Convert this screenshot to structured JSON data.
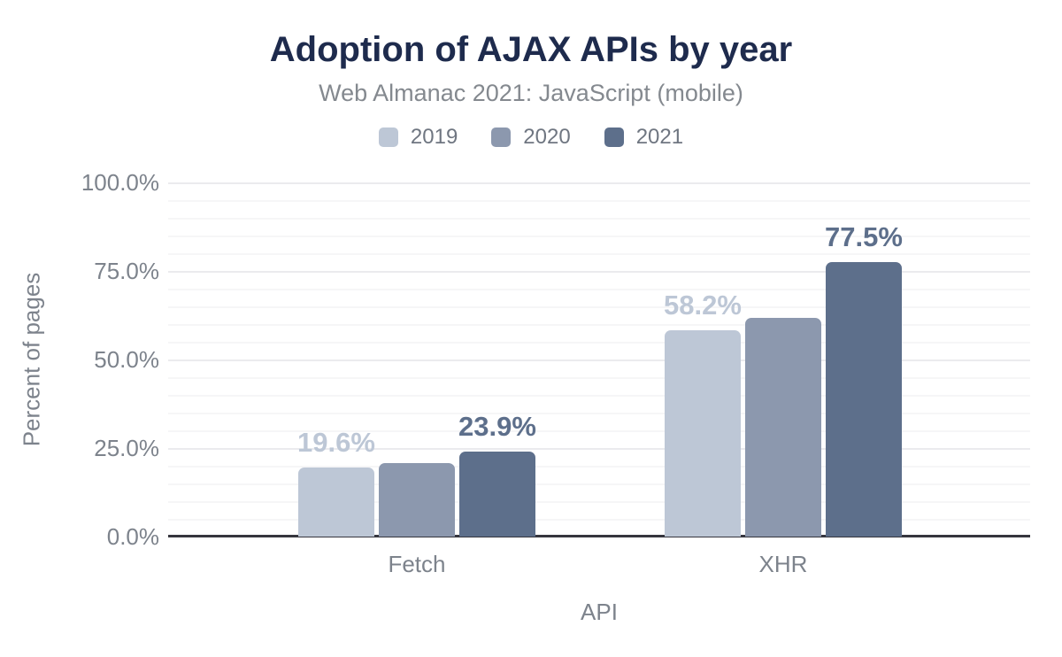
{
  "chart_data": {
    "type": "bar",
    "title": "Adoption of AJAX APIs by year",
    "subtitle": "Web Almanac 2021: JavaScript (mobile)",
    "categories": [
      "Fetch",
      "XHR"
    ],
    "series": [
      {
        "name": "2019",
        "color": "#bdc7d6",
        "values": [
          19.6,
          58.2
        ],
        "value_labels": [
          "19.6%",
          "58.2%"
        ]
      },
      {
        "name": "2020",
        "color": "#8c98ae",
        "values": [
          20.8,
          61.7
        ],
        "value_labels": [
          null,
          null
        ]
      },
      {
        "name": "2021",
        "color": "#5d6f8b",
        "values": [
          23.9,
          77.5
        ],
        "value_labels": [
          "23.9%",
          "77.5%"
        ]
      }
    ],
    "xlabel": "API",
    "ylabel": "Percent of pages",
    "ylim": [
      0,
      100
    ],
    "yticks": [
      {
        "value": 0,
        "label": "0.0%"
      },
      {
        "value": 25,
        "label": "25.0%"
      },
      {
        "value": 50,
        "label": "50.0%"
      },
      {
        "value": 75,
        "label": "75.0%"
      },
      {
        "value": 100,
        "label": "100.0%"
      }
    ],
    "minor_grid_step_percent": 5,
    "grid": true,
    "legend_position": "top",
    "colors": {
      "title": "#1e2b4d",
      "subtitle": "#84898f",
      "legend_text": "#6f7681",
      "axis_text": "#7d838c",
      "axis_line": "#36363e",
      "grid_minor": "#f6f6f7",
      "grid_major": "#ebebee",
      "background": "#ffffff"
    }
  }
}
